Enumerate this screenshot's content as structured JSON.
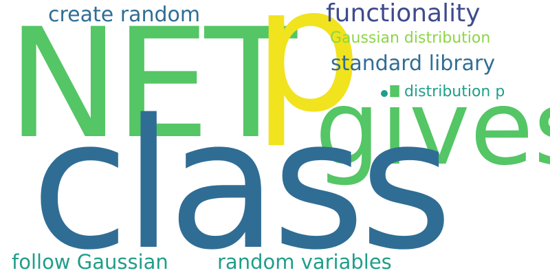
{
  "colors": {
    "green": "#54c665",
    "yellow": "#f1e31d",
    "steel_blue": "#306d94",
    "navy": "#3e4b8c",
    "teal": "#1f9e8a",
    "lime": "#8bd646"
  },
  "words": {
    "net": {
      "text": "NET",
      "color": "#54c665"
    },
    "p": {
      "text": "p",
      "color": "#f1e31d"
    },
    "gives": {
      "text": "gives",
      "color": "#54c665"
    },
    "class": {
      "text": "class",
      "color": "#306d94"
    },
    "functionality": {
      "text": "functionality",
      "color": "#3e4b8c"
    },
    "create_random": {
      "text": "create random",
      "color": "#306d94"
    },
    "gaussian_distribution": {
      "text": "Gaussian distribution",
      "color": "#8bd646"
    },
    "standard_library": {
      "text": "standard library",
      "color": "#306d94"
    },
    "distribution_p": {
      "text": "distribution p",
      "color": "#1f9e8a"
    },
    "follow_gaussian": {
      "text": "follow Gaussian",
      "color": "#1f9e8a"
    },
    "random_variables": {
      "text": "random variables",
      "color": "#1f9e8a"
    },
    "dot_color": "#1f9e8a"
  }
}
